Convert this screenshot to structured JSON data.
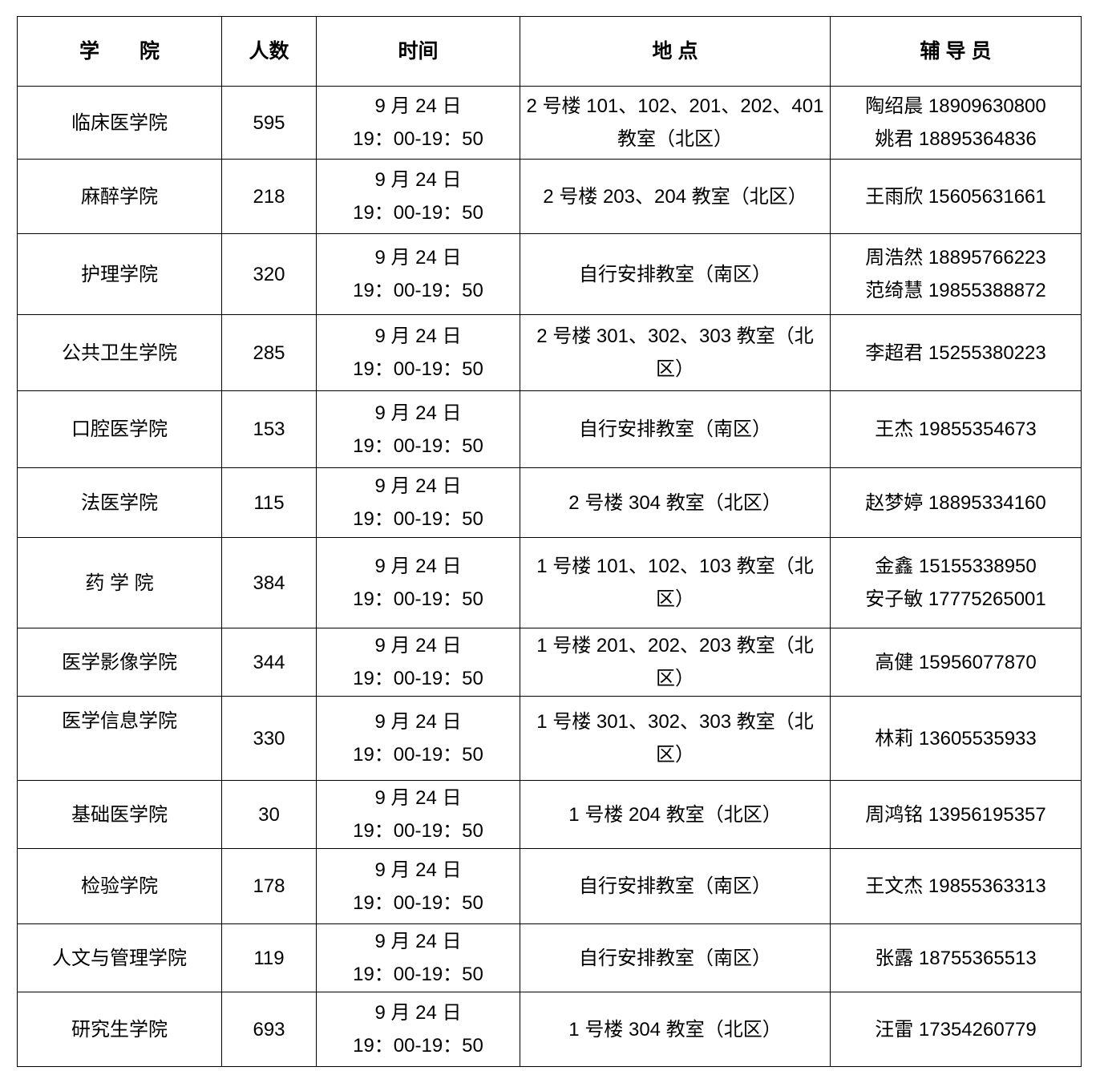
{
  "headers": [
    "学　　院",
    "人数",
    "时间",
    "地 点",
    "辅 导 员"
  ],
  "rows": [
    {
      "college": "临床医学院",
      "count": "595",
      "date": "9 月 24 日",
      "time": "19：00-19：50",
      "location": "2 号楼 101、102、201、202、401 教室（北区）",
      "counselors": [
        "陶绍晨 18909630800",
        "姚君 18895364836"
      ]
    },
    {
      "college": "麻醉学院",
      "count": "218",
      "date": "9 月 24 日",
      "time": "19：00-19：50",
      "location": "2 号楼 203、204 教室（北区）",
      "counselors": [
        "王雨欣 15605631661"
      ]
    },
    {
      "college": "护理学院",
      "count": "320",
      "date": "9 月 24 日",
      "time": "19：00-19：50",
      "location": "自行安排教室（南区）",
      "counselors": [
        "周浩然 18895766223",
        "范绮慧 19855388872"
      ]
    },
    {
      "college": "公共卫生学院",
      "count": "285",
      "date": "9 月 24 日",
      "time": "19：00-19：50",
      "location": "2 号楼 301、302、303 教室（北区）",
      "counselors": [
        "李超君 15255380223"
      ]
    },
    {
      "college": "口腔医学院",
      "count": "153",
      "date": "9 月 24 日",
      "time": "19：00-19：50",
      "location": "自行安排教室（南区）",
      "counselors": [
        "王杰 19855354673"
      ]
    },
    {
      "college": "法医学院",
      "count": "115",
      "date": "9 月 24 日",
      "time": "19：00-19：50",
      "location": "2 号楼 304 教室（北区）",
      "counselors": [
        "赵梦婷 18895334160"
      ]
    },
    {
      "college": "药 学 院",
      "count": "384",
      "date": "9 月 24 日",
      "time": "19：00-19：50",
      "location": "1 号楼 101、102、103 教室（北区）",
      "counselors": [
        "金鑫 15155338950",
        "安子敏 17775265001"
      ]
    },
    {
      "college": "医学影像学院",
      "count": "344",
      "date": "9 月 24 日",
      "time": "19：00-19：50",
      "location": "1 号楼 201、202、203 教室（北区）",
      "counselors": [
        "高健 15956077870"
      ]
    },
    {
      "college": "医学信息学院",
      "count": "330",
      "date": "9 月 24 日",
      "time": "19：00-19：50",
      "location": "1 号楼 301、302、303 教室（北区）",
      "counselors": [
        "林莉 13605535933"
      ]
    },
    {
      "college": "基础医学院",
      "count": "30",
      "date": "9 月 24 日",
      "time": "19：00-19：50",
      "location": "1 号楼 204 教室（北区）",
      "counselors": [
        "周鸿铭 13956195357"
      ]
    },
    {
      "college": "检验学院",
      "count": "178",
      "date": "9 月 24 日",
      "time": "19：00-19：50",
      "location": "自行安排教室（南区）",
      "counselors": [
        "王文杰 19855363313"
      ]
    },
    {
      "college": "人文与管理学院",
      "count": "119",
      "date": "9 月 24 日",
      "time": "19：00-19：50",
      "location": "自行安排教室（南区）",
      "counselors": [
        "张露 18755365513"
      ]
    },
    {
      "college": "研究生学院",
      "count": "693",
      "date": "9 月 24 日",
      "time": "19：00-19：50",
      "location": "1 号楼 304 教室（北区）",
      "counselors": [
        "汪雷 17354260779"
      ]
    }
  ]
}
